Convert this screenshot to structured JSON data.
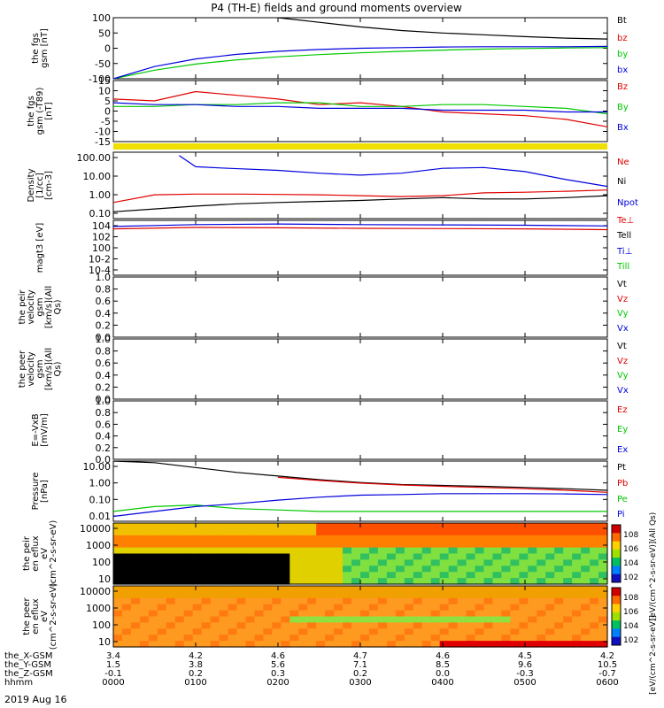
{
  "title": "P4 (TH-E) fields and ground moments overview",
  "date_label": "2019 Aug 16",
  "ephemeris": {
    "row_labels": [
      "the_X-GSM",
      "the_Y-GSM",
      "the_Z-GSM",
      "hhmm"
    ],
    "columns": [
      {
        "values": [
          "3.4",
          "1.5",
          "-0.1",
          "0000"
        ]
      },
      {
        "values": [
          "4.2",
          "3.8",
          "0.2",
          "0100"
        ]
      },
      {
        "values": [
          "4.6",
          "5.6",
          "0.3",
          "0200"
        ]
      },
      {
        "values": [
          "4.7",
          "7.1",
          "0.2",
          "0300"
        ]
      },
      {
        "values": [
          "4.6",
          "8.5",
          "0.0",
          "0400"
        ]
      },
      {
        "values": [
          "4.5",
          "9.6",
          "-0.3",
          "0500"
        ]
      },
      {
        "values": [
          "4.2",
          "10.5",
          "-0.7",
          "0600"
        ]
      }
    ]
  },
  "colorbar_label": "[eV/(cm^2-s-sr-eV)]",
  "colorbar_label_upper": "[eV/(cm^2-s-sr-eV)](All Qs)",
  "colorbar_ticks_upper": [
    "10^8",
    "10^6",
    "10^4",
    "10^2"
  ],
  "colorbar_ticks_lower": [
    "10^8",
    "10^6",
    "10^4",
    "10^2"
  ],
  "colors": {
    "black": "#000000",
    "red": "#e00000",
    "green": "#00c800",
    "blue": "#0000dd",
    "yellow": "#f0e000"
  },
  "chart_data": [
    {
      "type": "line",
      "ylabel": "the fgs gsm [nT]",
      "yticks": [
        "100",
        "50",
        "0",
        "-50",
        "-100"
      ],
      "ylim": [
        -100,
        100
      ],
      "legend": [
        "Bt",
        "bz",
        "by",
        "bx"
      ],
      "x": [
        0,
        0.5,
        1,
        1.5,
        2,
        2.5,
        3,
        3.5,
        4,
        4.5,
        5,
        5.5,
        6
      ],
      "series": [
        {
          "name": "Bt",
          "color": "black",
          "values": [
            null,
            null,
            null,
            null,
            100,
            85,
            70,
            58,
            50,
            44,
            38,
            33,
            30
          ]
        },
        {
          "name": "bz",
          "color": "red",
          "values": [
            null,
            null,
            null,
            null,
            null,
            null,
            null,
            null,
            null,
            null,
            null,
            null,
            null
          ]
        },
        {
          "name": "by",
          "color": "green",
          "values": [
            -100,
            -72,
            -52,
            -38,
            -28,
            -21,
            -15,
            -10,
            -6,
            -3,
            -1,
            1,
            2
          ]
        },
        {
          "name": "bx",
          "color": "blue",
          "values": [
            -100,
            -60,
            -35,
            -20,
            -10,
            -4,
            0,
            2,
            4,
            5,
            5,
            5,
            6
          ]
        }
      ]
    },
    {
      "type": "line",
      "ylabel": "the fgs gsm (-T89) [nT]",
      "yticks": [
        "15",
        "10",
        "5",
        "0",
        "-5",
        "-10",
        "-15"
      ],
      "ylim": [
        -18,
        15
      ],
      "legend": [
        "Bz",
        "By",
        "Bx"
      ],
      "x": [
        0,
        0.5,
        1,
        1.5,
        2,
        2.5,
        3,
        3.5,
        4,
        4.5,
        5,
        5.5,
        6
      ],
      "series": [
        {
          "name": "Bz",
          "color": "red",
          "values": [
            5,
            4,
            9,
            7,
            5,
            2,
            3,
            1,
            -2,
            -3,
            -4,
            -6,
            -10
          ]
        },
        {
          "name": "By",
          "color": "green",
          "values": [
            1,
            1,
            2,
            2,
            3,
            3,
            1,
            1,
            2,
            2,
            1,
            0,
            -3
          ]
        },
        {
          "name": "Bx",
          "color": "blue",
          "values": [
            3,
            2,
            2,
            1,
            1,
            0,
            0,
            0,
            -1,
            -1,
            -1,
            -2,
            -2
          ]
        }
      ]
    },
    {
      "type": "line",
      "ylabel": "Density [1/cc] [cm-3]",
      "yticks": [
        "100.00",
        "10.00",
        "1.00",
        "0.10"
      ],
      "ylim": [
        0.03,
        400
      ],
      "log": true,
      "legend": [
        "Ne",
        "Ni",
        "Npot"
      ],
      "x": [
        0,
        0.5,
        1,
        1.5,
        2,
        2.5,
        3,
        3.5,
        4,
        4.5,
        5,
        5.5,
        6
      ],
      "series": [
        {
          "name": "Ne",
          "color": "red",
          "values": [
            0.3,
            0.9,
            1.0,
            1.0,
            0.95,
            0.9,
            0.8,
            0.7,
            0.8,
            1.2,
            1.3,
            1.5,
            1.8
          ]
        },
        {
          "name": "Ni",
          "color": "black",
          "values": [
            0.08,
            0.12,
            0.18,
            0.25,
            0.3,
            0.35,
            0.4,
            0.5,
            0.6,
            0.5,
            0.5,
            0.6,
            0.8
          ]
        },
        {
          "name": "Npot",
          "color": "blue",
          "values": [
            null,
            null,
            null,
            null,
            null,
            null,
            null,
            null,
            null,
            null,
            null,
            null,
            null
          ]
        }
      ],
      "extra_series": [
        {
          "name": "",
          "color": "blue",
          "x": [
            0.8,
            1.0,
            1.4,
            2,
            2.5,
            3,
            3.5,
            4,
            4.5,
            5,
            5.5,
            6
          ],
          "values": [
            250,
            50,
            40,
            30,
            20,
            15,
            20,
            40,
            45,
            25,
            8,
            3
          ]
        }
      ]
    },
    {
      "type": "line",
      "ylabel": "magt3 [eV]",
      "yticks": [
        "10^4",
        "10^2",
        "10^0",
        "10^-2",
        "10^-4"
      ],
      "ylim": [
        1e-05,
        10000
      ],
      "log": true,
      "legend": [
        "Te⊥",
        "Tell",
        "Ti⊥",
        "Till"
      ],
      "x": [
        0,
        1,
        2,
        3,
        4,
        5,
        6
      ],
      "series": [
        {
          "name": "Te⊥",
          "color": "red",
          "values": [
            400,
            700,
            600,
            500,
            450,
            400,
            300
          ]
        },
        {
          "name": "Tell",
          "color": "black",
          "values": [
            null,
            null,
            null,
            null,
            null,
            null,
            null
          ]
        },
        {
          "name": "Ti⊥",
          "color": "blue",
          "values": [
            1000,
            2000,
            2500,
            2000,
            1800,
            1600,
            1200
          ]
        },
        {
          "name": "Till",
          "color": "green",
          "values": [
            null,
            null,
            null,
            null,
            null,
            null,
            null
          ]
        }
      ]
    },
    {
      "type": "line",
      "ylabel": "the peir velocity gsm [km/s](All Qs)",
      "yticks": [
        "1.0",
        "0.8",
        "0.6",
        "0.4",
        "0.2",
        "0.0"
      ],
      "ylim": [
        0,
        1
      ],
      "legend": [
        "Vt",
        "Vz",
        "Vy",
        "Vx"
      ],
      "series": []
    },
    {
      "type": "line",
      "ylabel": "the peer velocity gsm [km/s](All Qs)",
      "yticks": [
        "1.0",
        "0.8",
        "0.6",
        "0.4",
        "0.2",
        "0.0"
      ],
      "ylim": [
        0,
        1
      ],
      "legend": [
        "Vt",
        "Vz",
        "Vy",
        "Vx"
      ],
      "series": []
    },
    {
      "type": "line",
      "ylabel": "E=-VxB [mV/m]",
      "yticks": [
        "1.0",
        "0.8",
        "0.6",
        "0.4",
        "0.2",
        "0.0"
      ],
      "ylim": [
        0,
        1
      ],
      "legend": [
        "Ez",
        "Ey",
        "Ex"
      ],
      "series": []
    },
    {
      "type": "line",
      "ylabel": "Pressure [nPa]",
      "yticks": [
        "10.00",
        "1.00",
        "0.10",
        "0.01"
      ],
      "ylim": [
        0.005,
        25
      ],
      "log": true,
      "legend": [
        "Pt",
        "Pb",
        "Pe",
        "Pi"
      ],
      "x": [
        0,
        0.5,
        1,
        1.5,
        2,
        2.5,
        3,
        3.5,
        4,
        4.5,
        5,
        5.5,
        6
      ],
      "series": [
        {
          "name": "Pt",
          "color": "black",
          "values": [
            30,
            20,
            10,
            5,
            3,
            1.8,
            1.2,
            0.9,
            0.8,
            0.7,
            0.6,
            0.5,
            0.4
          ]
        },
        {
          "name": "Pb",
          "color": "red",
          "values": [
            null,
            null,
            null,
            null,
            2.5,
            1.6,
            1.1,
            0.85,
            0.7,
            0.6,
            0.5,
            0.4,
            0.3
          ]
        },
        {
          "name": "Pe",
          "color": "green",
          "values": [
            0.02,
            0.04,
            0.05,
            0.03,
            0.025,
            0.02,
            0.02,
            0.02,
            0.02,
            0.02,
            0.02,
            0.02,
            0.02
          ]
        },
        {
          "name": "Pi",
          "color": "blue",
          "values": [
            0.01,
            0.02,
            0.04,
            0.06,
            0.1,
            0.15,
            0.2,
            0.22,
            0.25,
            0.25,
            0.25,
            0.24,
            0.22
          ]
        }
      ]
    },
    {
      "type": "heatmap",
      "ylabel": "the peir en eflux eV (cm^2-s-sr-eV)",
      "yticks": [
        "10000",
        "1000",
        "100",
        "10"
      ],
      "ylim": [
        5,
        25000
      ],
      "log": true
    },
    {
      "type": "heatmap",
      "ylabel": "the peer en eflux eV (cm^2-s-sr-eV)",
      "yticks": [
        "10000",
        "1000",
        "100",
        "10"
      ],
      "ylim": [
        5,
        25000
      ],
      "log": true
    }
  ]
}
